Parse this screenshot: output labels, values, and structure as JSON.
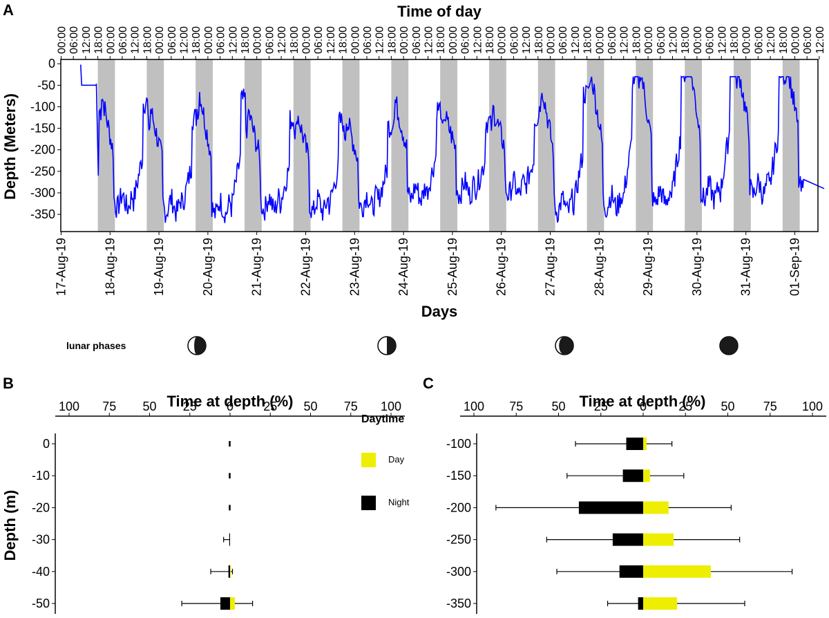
{
  "figure": {
    "panel_a_letter": "A",
    "panel_b_letter": "B",
    "panel_c_letter": "C",
    "lunar_label": "lunar phases",
    "lunar_phases": [
      "first-quarter-waxing",
      "waxing-gibbous",
      "nearly-full",
      "full"
    ]
  },
  "chart_data": [
    {
      "type": "line",
      "xlabel_top": "Time of day",
      "xlabel": "Days",
      "ylabel": "Depth (Meters)",
      "ylim": [
        -390,
        10
      ],
      "y_ticks": [
        "0",
        "-50",
        "-100",
        "-150",
        "-200",
        "-250",
        "-300",
        "-350"
      ],
      "time_ticks": [
        "00:00",
        "06:00",
        "12:00",
        "18:00",
        "00:00",
        "06:00",
        "12:00",
        "18:00",
        "00:00",
        "06:00",
        "12:00",
        "18:00",
        "00:00",
        "06:00",
        "12:00",
        "18:00",
        "00:00",
        "06:00",
        "12:00",
        "18:00",
        "00:00",
        "06:00",
        "12:00",
        "18:00",
        "00:00",
        "06:00",
        "12:00",
        "18:00",
        "00:00",
        "06:00",
        "12:00",
        "18:00",
        "00:00",
        "06:00",
        "12:00",
        "18:00",
        "00:00",
        "06:00",
        "12:00",
        "18:00",
        "00:00",
        "06:00",
        "12:00",
        "18:00",
        "00:00",
        "06:00",
        "12:00",
        "18:00",
        "00:00",
        "06:00",
        "12:00",
        "18:00",
        "00:00",
        "06:00",
        "12:00",
        "18:00",
        "00:00",
        "06:00",
        "12:00",
        "18:00",
        "00:00",
        "06:00",
        "12:00",
        "18:00"
      ],
      "day_ticks": [
        "17-Aug-19",
        "18-Aug-19",
        "19-Aug-19",
        "20-Aug-19",
        "21-Aug-19",
        "22-Aug-19",
        "23-Aug-19",
        "24-Aug-19",
        "25-Aug-19",
        "26-Aug-19",
        "27-Aug-19",
        "28-Aug-19",
        "29-Aug-19",
        "30-Aug-19",
        "31-Aug-19",
        "01-Sep-19"
      ],
      "night_shading": "18:00-06:00 each day",
      "series_color": "#0000ff",
      "nightly_mean_depth_m": [
        -320,
        -330,
        -335,
        -325,
        -330,
        -320,
        -300,
        -290,
        -290,
        -330,
        -320,
        -310,
        -300,
        -290,
        -280
      ],
      "daily_min_depth_m": [
        -130,
        -165,
        -125,
        -170,
        -175,
        -185,
        -145,
        -175,
        -165,
        -110,
        -75,
        -60,
        -40,
        -55,
        -45
      ]
    },
    {
      "type": "bar",
      "orientation": "horizontal-diverging",
      "xlabel": "Time at depth (%)",
      "ylabel": "Depth (m)",
      "x_ticks": [
        "100",
        "75",
        "50",
        "25",
        "0",
        "25",
        "50",
        "75",
        "100"
      ],
      "categories": [
        "0",
        "-10",
        "-20",
        "-30",
        "-40",
        "-50"
      ],
      "legend_title": "Daytime",
      "series": [
        {
          "name": "Day",
          "color": "#eeee00",
          "values": [
            0,
            0,
            0,
            0,
            0.5,
            3
          ],
          "err": [
            0,
            0,
            0,
            0,
            1.5,
            14
          ]
        },
        {
          "name": "Night",
          "color": "#000000",
          "values": [
            0,
            0,
            0,
            0.5,
            1,
            6
          ],
          "err": [
            0.5,
            0.5,
            0.5,
            4,
            12,
            30
          ]
        }
      ]
    },
    {
      "type": "bar",
      "orientation": "horizontal-diverging",
      "xlabel": "Time at depth (%)",
      "x_ticks": [
        "100",
        "75",
        "50",
        "25",
        "0",
        "25",
        "50",
        "75",
        "100"
      ],
      "categories": [
        "-100",
        "-150",
        "-200",
        "-250",
        "-300",
        "-350"
      ],
      "series": [
        {
          "name": "Day",
          "color": "#eeee00",
          "values": [
            2,
            4,
            15,
            18,
            40,
            20
          ],
          "err": [
            17,
            24,
            52,
            57,
            88,
            60
          ]
        },
        {
          "name": "Night",
          "color": "#000000",
          "values": [
            10,
            12,
            38,
            18,
            14,
            3
          ],
          "err": [
            40,
            45,
            87,
            57,
            51,
            21
          ]
        }
      ]
    }
  ]
}
